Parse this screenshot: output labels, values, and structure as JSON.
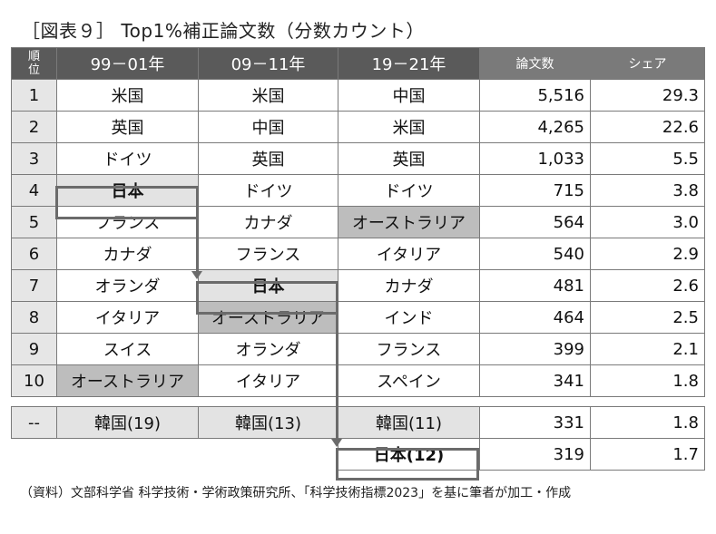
{
  "title": "［図表９］ Top1%補正論文数（分数カウント）",
  "header": {
    "rank_label": "順\n位",
    "col1": "99－01年",
    "col2": "09－11年",
    "col3": "19－21年",
    "col4": "論文数",
    "col5": "シェア"
  },
  "rows": [
    {
      "rank": "1",
      "c1": "米国",
      "c2": "米国",
      "c3": "中国",
      "papers": "5,516",
      "share": "29.3"
    },
    {
      "rank": "2",
      "c1": "英国",
      "c2": "中国",
      "c3": "米国",
      "papers": "4,265",
      "share": "22.6"
    },
    {
      "rank": "3",
      "c1": "ドイツ",
      "c2": "英国",
      "c3": "英国",
      "papers": "1,033",
      "share": "5.5"
    },
    {
      "rank": "4",
      "c1": "日本",
      "c2": "ドイツ",
      "c3": "ドイツ",
      "papers": "715",
      "share": "3.8"
    },
    {
      "rank": "5",
      "c1": "フランス",
      "c2": "カナダ",
      "c3": "オーストラリア",
      "papers": "564",
      "share": "3.0"
    },
    {
      "rank": "6",
      "c1": "カナダ",
      "c2": "フランス",
      "c3": "イタリア",
      "papers": "540",
      "share": "2.9"
    },
    {
      "rank": "7",
      "c1": "オランダ",
      "c2": "日本",
      "c3": "カナダ",
      "papers": "481",
      "share": "2.6"
    },
    {
      "rank": "8",
      "c1": "イタリア",
      "c2": "オーストラリア",
      "c3": "インド",
      "papers": "464",
      "share": "2.5"
    },
    {
      "rank": "9",
      "c1": "スイス",
      "c2": "オランダ",
      "c3": "フランス",
      "papers": "399",
      "share": "2.1"
    },
    {
      "rank": "10",
      "c1": "オーストラリア",
      "c2": "イタリア",
      "c3": "スペイン",
      "papers": "341",
      "share": "1.8"
    }
  ],
  "korea_row": {
    "rank": "--",
    "c1": "韓国(19)",
    "c2": "韓国(13)",
    "c3": "韓国(11)",
    "papers": "331",
    "share": "1.8"
  },
  "japan_row": {
    "c3": "日本(12)",
    "papers": "319",
    "share": "1.7"
  },
  "source": "（資料）文部科学省 科学技術・学術政策研究所、「科学技術指標2023」を基に筆者が加工・作成"
}
